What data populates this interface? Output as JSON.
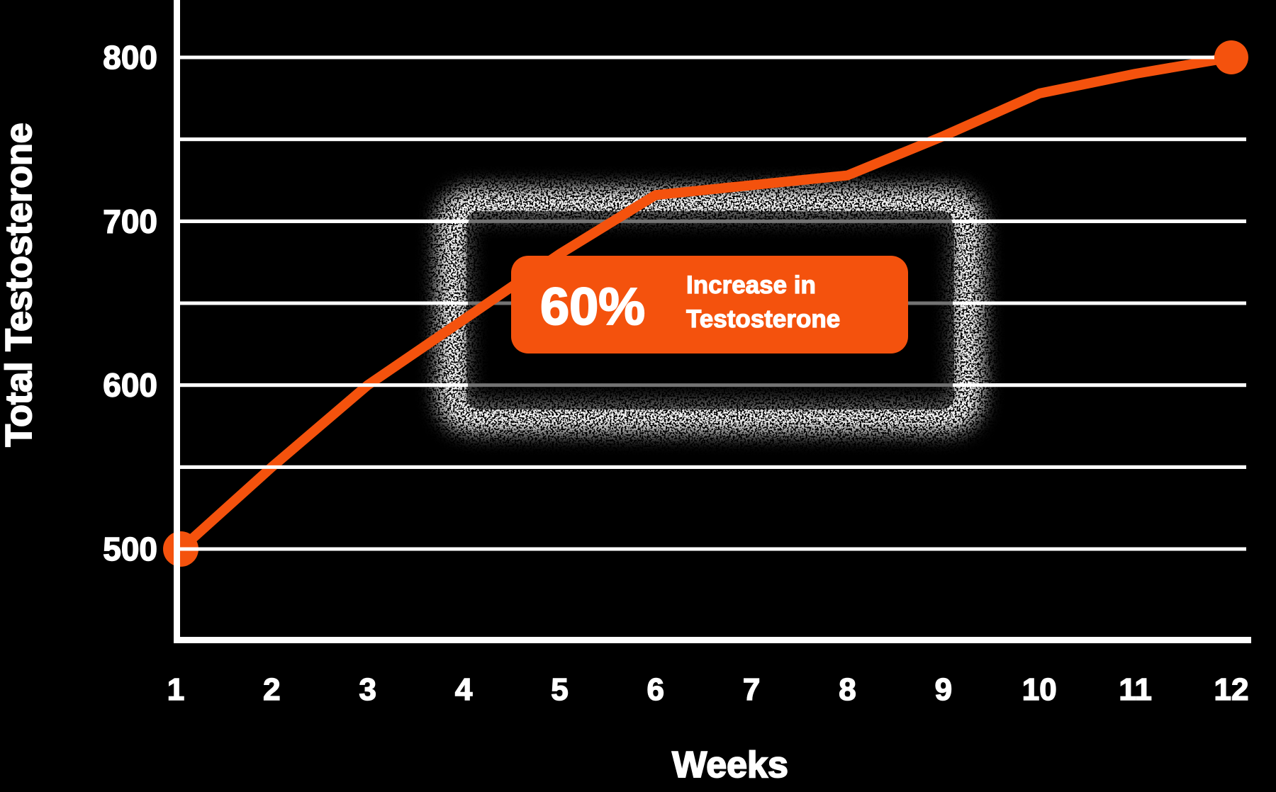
{
  "page": {
    "background": "#000000"
  },
  "colors": {
    "accent_orange": "#F4520D",
    "grid_white": "#FFFFFF",
    "text_white": "#FFFFFF",
    "noise_overlay": "rgba(0,0,0,0.55)"
  },
  "chart_data": {
    "type": "line",
    "title": "",
    "xlabel": "Weeks",
    "ylabel": "Total Testosterone",
    "x": [
      1,
      2,
      3,
      4,
      5,
      6,
      7,
      8,
      9,
      10,
      11,
      12
    ],
    "values": [
      500,
      550,
      600,
      640,
      680,
      716,
      722,
      728,
      752,
      778,
      790,
      800
    ],
    "yticks": [
      800,
      700,
      600,
      500
    ],
    "gridline_values": [
      800,
      750,
      700,
      650,
      600,
      550,
      500
    ],
    "ylim": [
      500,
      800
    ],
    "xlim": [
      1,
      12
    ],
    "grid": true,
    "legend_position": "none",
    "marker_points": [
      1,
      12
    ],
    "annotation": {
      "stat": "60%",
      "line1": "Increase in",
      "line2": "Testosterone"
    }
  }
}
